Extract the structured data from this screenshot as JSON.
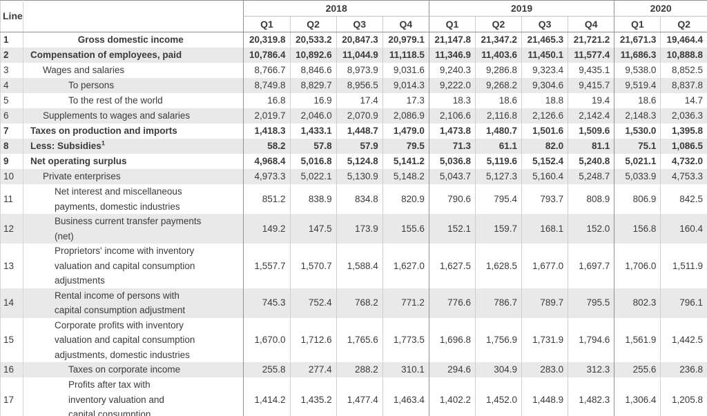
{
  "colors": {
    "stripe_row": "#e9e9e9",
    "minor_border": "#cdcdcd",
    "major_border": "#8f8f8f",
    "text": "#3a3a3a",
    "background": "#ffffff"
  },
  "table": {
    "line_header": "Line",
    "year_groups": [
      {
        "label": "2018",
        "quarters": [
          "Q1",
          "Q2",
          "Q3",
          "Q4"
        ]
      },
      {
        "label": "2019",
        "quarters": [
          "Q1",
          "Q2",
          "Q3",
          "Q4"
        ]
      },
      {
        "label": "2020",
        "quarters": [
          "Q1",
          "Q2"
        ]
      }
    ],
    "rows": [
      {
        "line": "1",
        "label": "Gross domestic income",
        "bold": true,
        "indent": "center",
        "values": [
          "20,319.8",
          "20,533.2",
          "20,847.3",
          "20,979.1",
          "21,147.8",
          "21,347.2",
          "21,465.3",
          "21,721.2",
          "21,671.3",
          "19,464.4"
        ]
      },
      {
        "line": "2",
        "label": "Compensation of employees, paid",
        "bold": true,
        "indent": 0,
        "values": [
          "10,786.4",
          "10,892.6",
          "11,044.9",
          "11,118.5",
          "11,346.9",
          "11,403.6",
          "11,450.1",
          "11,577.4",
          "11,686.3",
          "10,888.8"
        ]
      },
      {
        "line": "3",
        "label": "Wages and salaries",
        "bold": false,
        "indent": 1,
        "values": [
          "8,766.7",
          "8,846.6",
          "8,973.9",
          "9,031.6",
          "9,240.3",
          "9,286.8",
          "9,323.4",
          "9,435.1",
          "9,538.0",
          "8,852.5"
        ]
      },
      {
        "line": "4",
        "label": "To persons",
        "bold": false,
        "indent": 3,
        "values": [
          "8,749.8",
          "8,829.7",
          "8,956.5",
          "9,014.3",
          "9,222.0",
          "9,268.2",
          "9,304.6",
          "9,415.7",
          "9,519.4",
          "8,837.8"
        ]
      },
      {
        "line": "5",
        "label": "To the rest of the world",
        "bold": false,
        "indent": 3,
        "values": [
          "16.8",
          "16.9",
          "17.4",
          "17.3",
          "18.3",
          "18.6",
          "18.8",
          "19.4",
          "18.6",
          "14.7"
        ]
      },
      {
        "line": "6",
        "label": "Supplements to wages and salaries",
        "bold": false,
        "indent": 1,
        "values": [
          "2,019.7",
          "2,046.0",
          "2,070.9",
          "2,086.9",
          "2,106.6",
          "2,116.8",
          "2,126.6",
          "2,142.4",
          "2,148.3",
          "2,036.3"
        ]
      },
      {
        "line": "7",
        "label": "Taxes on production and imports",
        "bold": true,
        "indent": 0,
        "values": [
          "1,418.3",
          "1,433.1",
          "1,448.7",
          "1,479.0",
          "1,473.8",
          "1,480.7",
          "1,501.6",
          "1,509.6",
          "1,530.0",
          "1,395.8"
        ]
      },
      {
        "line": "8",
        "label": "Less: Subsidies",
        "sup": "1",
        "bold": true,
        "indent": 0,
        "values": [
          "58.2",
          "57.8",
          "57.9",
          "79.5",
          "71.3",
          "61.1",
          "82.0",
          "81.1",
          "75.1",
          "1,086.5"
        ]
      },
      {
        "line": "9",
        "label": "Net operating surplus",
        "bold": true,
        "indent": 0,
        "values": [
          "4,968.4",
          "5,016.8",
          "5,124.8",
          "5,141.2",
          "5,036.8",
          "5,119.6",
          "5,152.4",
          "5,240.8",
          "5,021.1",
          "4,732.0"
        ]
      },
      {
        "line": "10",
        "label": "Private enterprises",
        "bold": false,
        "indent": 1,
        "values": [
          "4,973.3",
          "5,022.1",
          "5,130.9",
          "5,148.2",
          "5,043.7",
          "5,127.3",
          "5,160.4",
          "5,248.7",
          "5,033.9",
          "4,753.3"
        ]
      },
      {
        "line": "11",
        "label": "Net interest and miscellaneous\npayments, domestic industries",
        "bold": false,
        "indent": 2,
        "values": [
          "851.2",
          "838.9",
          "834.8",
          "820.9",
          "790.6",
          "795.4",
          "793.7",
          "808.9",
          "806.9",
          "842.5"
        ]
      },
      {
        "line": "12",
        "label": "Business current transfer payments\n(net)",
        "bold": false,
        "indent": 2,
        "values": [
          "149.2",
          "147.5",
          "173.9",
          "155.6",
          "152.1",
          "159.7",
          "168.1",
          "152.0",
          "156.8",
          "160.4"
        ]
      },
      {
        "line": "13",
        "label": "Proprietors' income with inventory\nvaluation and capital consumption\nadjustments",
        "bold": false,
        "indent": 2,
        "values": [
          "1,557.7",
          "1,570.7",
          "1,588.4",
          "1,627.0",
          "1,627.5",
          "1,628.5",
          "1,677.0",
          "1,697.7",
          "1,706.0",
          "1,511.9"
        ]
      },
      {
        "line": "14",
        "label": "Rental income of persons with\ncapital consumption adjustment",
        "bold": false,
        "indent": 2,
        "values": [
          "745.3",
          "752.4",
          "768.2",
          "771.2",
          "776.6",
          "786.7",
          "789.7",
          "795.5",
          "802.3",
          "796.1"
        ]
      },
      {
        "line": "15",
        "label": "Corporate profits with inventory\nvaluation and capital consumption\nadjustments, domestic industries",
        "bold": false,
        "indent": 2,
        "values": [
          "1,670.0",
          "1,712.6",
          "1,765.6",
          "1,773.5",
          "1,696.8",
          "1,756.9",
          "1,731.9",
          "1,794.6",
          "1,561.9",
          "1,442.5"
        ]
      },
      {
        "line": "16",
        "label": "Taxes on corporate income",
        "bold": false,
        "indent": 3,
        "values": [
          "255.8",
          "277.4",
          "288.2",
          "310.1",
          "294.6",
          "304.9",
          "283.0",
          "312.3",
          "255.6",
          "236.8"
        ]
      },
      {
        "line": "17",
        "label": "Profits after tax with\ninventory valuation and\ncapital consumption",
        "bold": false,
        "indent": 3,
        "values": [
          "1,414.2",
          "1,435.2",
          "1,477.4",
          "1,463.4",
          "1,402.2",
          "1,452.0",
          "1,448.9",
          "1,482.3",
          "1,306.4",
          "1,205.8"
        ]
      }
    ]
  }
}
